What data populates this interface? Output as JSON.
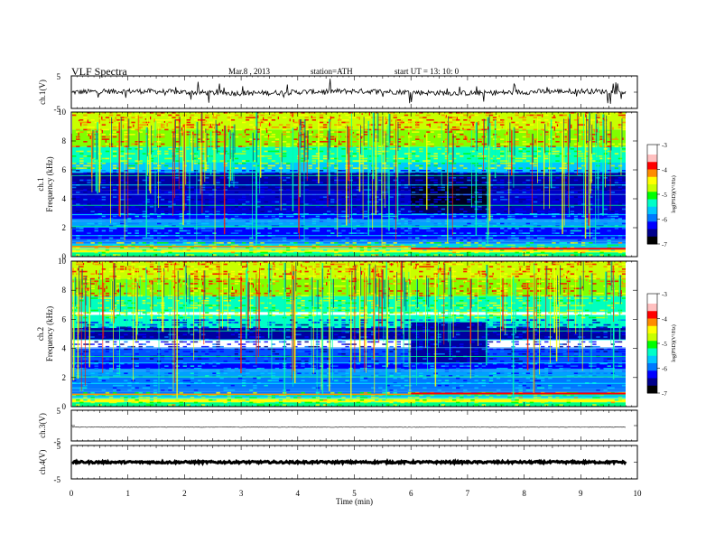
{
  "header": {
    "title": "VLF  Spectra",
    "date": "Mar.8  , 2013",
    "station": "station=ATH",
    "start": "start  UT  =    13: 10: 0"
  },
  "colors": {
    "spectrogram_scale": [
      "#000000",
      "#00008b",
      "#0000ff",
      "#0078ff",
      "#00c8ff",
      "#00ffc8",
      "#00ff00",
      "#c8ff00",
      "#ffff00",
      "#ff8c00",
      "#ff0000",
      "#ffc0c0",
      "#ffffff"
    ],
    "trace": "#000000"
  },
  "chart_data": [
    {
      "type": "line",
      "panel": "ch1-waveform",
      "ylabel": "ch.1(V)",
      "ylim": [
        -5,
        5
      ],
      "yticks": [
        "5",
        "-5"
      ],
      "baseline": 0,
      "note_values": "noisy waveform near 0 V with spikes"
    },
    {
      "type": "heatmap",
      "panel": "ch1-spectrogram",
      "ylabel": "ch.1\nFrequency  (kHz)",
      "ylabel_lines": [
        "ch.1",
        "Frequency  (kHz)"
      ],
      "ylim": [
        0,
        10
      ],
      "yticks": [
        "0",
        "2",
        "4",
        "6",
        "8",
        "10"
      ],
      "xlim": [
        0,
        9.8
      ],
      "colorbar": {
        "label": "log(PSD) (V²/Hz)",
        "range": [
          -7,
          -3
        ],
        "ticks": [
          "-3",
          "-4",
          "-5",
          "-6",
          "-7"
        ]
      }
    },
    {
      "type": "heatmap",
      "panel": "ch2-spectrogram",
      "ylabel_lines": [
        "ch.2",
        "Frequency  (kHz)"
      ],
      "ylim": [
        0,
        10
      ],
      "yticks": [
        "0",
        "2",
        "4",
        "6",
        "8",
        "10"
      ],
      "xlim": [
        0,
        9.8
      ],
      "colorbar": {
        "label": "log(PSD) (V²/Hz)",
        "range": [
          -7,
          -3
        ],
        "ticks": [
          "-3",
          "-4",
          "-5",
          "-6",
          "-7"
        ]
      }
    },
    {
      "type": "line",
      "panel": "ch3-waveform",
      "ylabel": "ch.3(V)",
      "ylim": [
        -5,
        5
      ],
      "yticks": [
        "5",
        "-5"
      ],
      "baseline": -0.5
    },
    {
      "type": "line",
      "panel": "ch4-waveform",
      "ylabel": "ch.4(V)",
      "ylim": [
        -5,
        5
      ],
      "yticks": [
        "5",
        "-5"
      ],
      "baseline": 0
    }
  ],
  "xaxis": {
    "label": "Time  (min)",
    "range": [
      0,
      10
    ],
    "ticks": [
      "0",
      "1",
      "2",
      "3",
      "4",
      "5",
      "6",
      "7",
      "8",
      "9",
      "10"
    ]
  },
  "colorbar_label_text": "log(PSD)(V²/Hz)"
}
